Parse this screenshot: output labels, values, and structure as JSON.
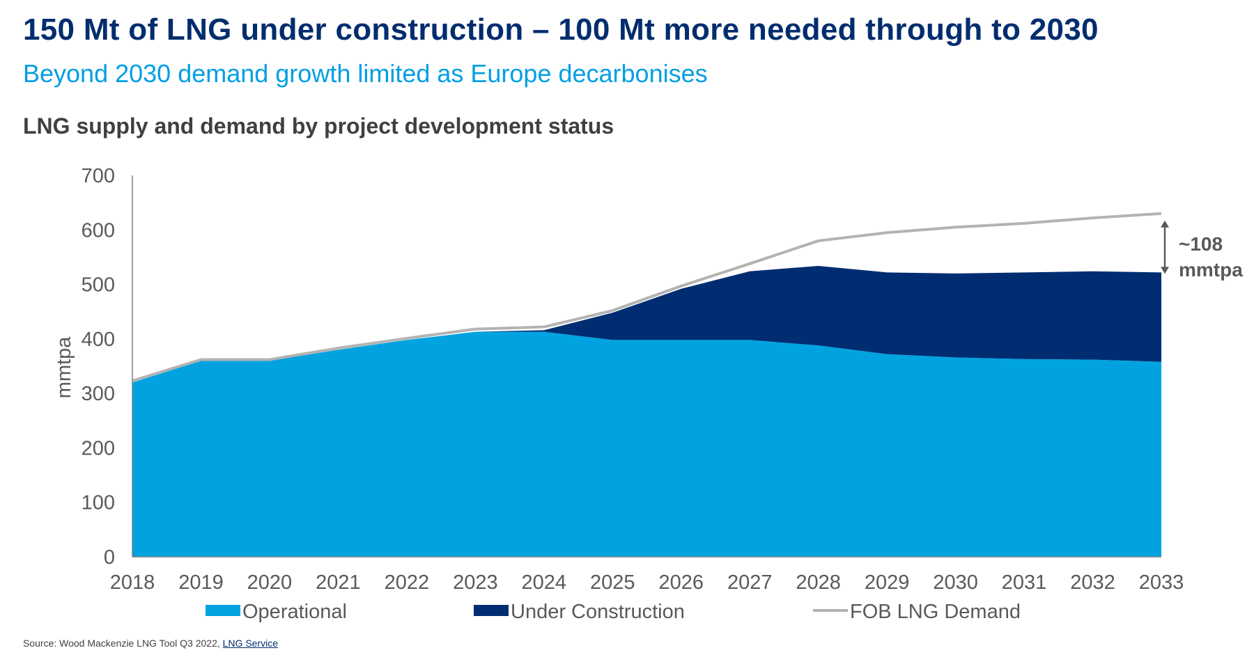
{
  "header": {
    "title": "150 Mt of LNG under construction – 100 Mt more needed through to 2030",
    "subtitle": "Beyond 2030 demand growth limited as Europe decarbonises",
    "chart_title": "LNG supply and demand by project development status"
  },
  "source": {
    "prefix": "Source: Wood Mackenzie LNG Tool Q3 2022,",
    "link_text": "LNG Service"
  },
  "colors": {
    "operational": "#00A3E0",
    "under_construction": "#002D72",
    "demand": "#B3B3B3",
    "axis": "#595959",
    "annotation": "#595959"
  },
  "chart_data": {
    "type": "area",
    "title": "LNG supply and demand by project development status",
    "xlabel": "",
    "ylabel": "mmtpa",
    "ylim": [
      0,
      700
    ],
    "yticks": [
      0,
      100,
      200,
      300,
      400,
      500,
      600,
      700
    ],
    "categories": [
      "2018",
      "2019",
      "2020",
      "2021",
      "2022",
      "2023",
      "2024",
      "2025",
      "2026",
      "2027",
      "2028",
      "2029",
      "2030",
      "2031",
      "2032",
      "2033"
    ],
    "series": [
      {
        "name": "Operational",
        "kind": "stacked-area",
        "color": "#00A3E0",
        "values": [
          320,
          360,
          360,
          380,
          398,
          413,
          413,
          398,
          398,
          398,
          388,
          372,
          366,
          363,
          362,
          358
        ]
      },
      {
        "name": "Under Construction",
        "kind": "stacked-area",
        "color": "#002D72",
        "values": [
          0,
          0,
          0,
          0,
          0,
          0,
          3,
          50,
          94,
          126,
          146,
          150,
          154,
          159,
          162,
          164
        ]
      },
      {
        "name": "FOB LNG Demand",
        "kind": "line",
        "color": "#B3B3B3",
        "values": [
          323,
          362,
          362,
          383,
          401,
          418,
          422,
          452,
          497,
          538,
          580,
          595,
          605,
          612,
          622,
          630
        ]
      }
    ],
    "legend": [
      "Operational",
      "Under Construction",
      "FOB LNG Demand"
    ],
    "legend_position": "bottom",
    "annotation": {
      "line1": "~108",
      "line2": "mmtpa",
      "from_value": 630,
      "to_value": 522,
      "category": "2033"
    }
  }
}
